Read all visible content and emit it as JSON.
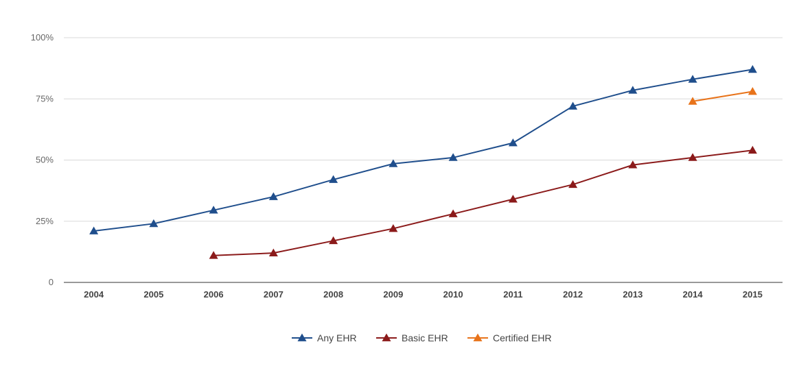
{
  "chart_data": {
    "type": "line",
    "categories": [
      "2004",
      "2005",
      "2006",
      "2007",
      "2008",
      "2009",
      "2010",
      "2011",
      "2012",
      "2013",
      "2014",
      "2015"
    ],
    "y_tick_labels": [
      "0",
      "25%",
      "50%",
      "75%",
      "100%"
    ],
    "y_tick_values": [
      0,
      25,
      50,
      75,
      100
    ],
    "ylim": [
      0,
      100
    ],
    "grid": true,
    "legend_position": "bottom",
    "series": [
      {
        "name": "Any EHR",
        "color": "#1f4e8c",
        "marker": "triangle",
        "values": [
          21,
          24,
          29.5,
          35,
          42,
          48.5,
          51,
          57,
          72,
          78.5,
          83,
          87
        ]
      },
      {
        "name": "Basic EHR",
        "color": "#8b1a1a",
        "marker": "triangle",
        "values": [
          null,
          null,
          11,
          12,
          17,
          22,
          28,
          34,
          40,
          48,
          51,
          54
        ]
      },
      {
        "name": "Certified EHR",
        "color": "#e8731a",
        "marker": "triangle",
        "values": [
          null,
          null,
          null,
          null,
          null,
          null,
          null,
          null,
          null,
          null,
          74,
          78
        ]
      }
    ]
  }
}
